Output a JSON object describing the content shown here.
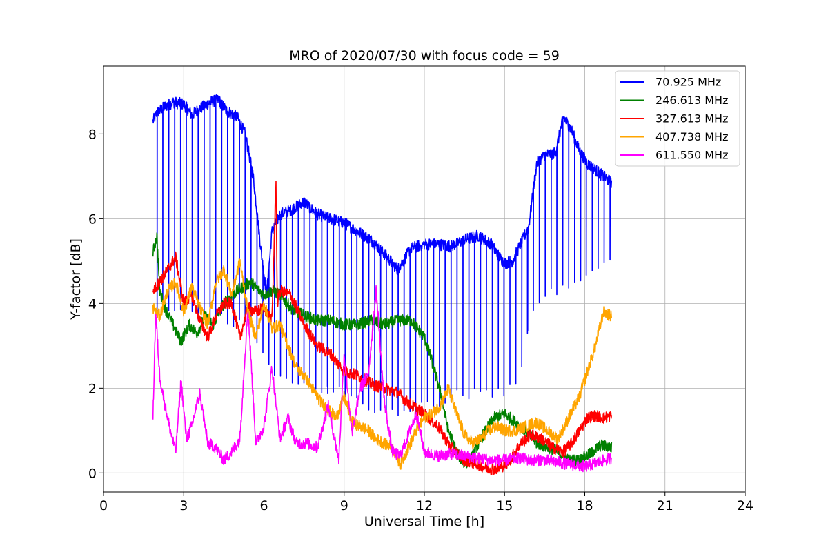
{
  "chart_data": {
    "type": "line",
    "title": "MRO of 2020/07/30 with focus code = 59",
    "xlabel": "Universal Time [h]",
    "ylabel": "Y-factor [dB]",
    "xlim": [
      0,
      24
    ],
    "ylim": [
      -0.45,
      9.6
    ],
    "xticks": [
      0,
      3,
      6,
      9,
      12,
      15,
      18,
      21,
      24
    ],
    "yticks": [
      0,
      2,
      4,
      6,
      8
    ],
    "grid": true,
    "legend_position": "top-right",
    "series": [
      {
        "name": " 70.925 MHz",
        "color": "#0000ff",
        "x": [
          1.85,
          2.0,
          2.3,
          2.6,
          3.0,
          3.3,
          3.6,
          4.0,
          4.3,
          4.6,
          5.0,
          5.3,
          5.6,
          5.9,
          6.1,
          6.3,
          6.6,
          7.0,
          7.5,
          8.0,
          8.5,
          9.0,
          9.5,
          10.0,
          10.3,
          10.6,
          11.0,
          11.5,
          12.0,
          12.5,
          13.0,
          13.5,
          14.0,
          14.5,
          14.8,
          15.0,
          15.3,
          15.6,
          15.9,
          16.2,
          16.5,
          16.9,
          17.2,
          17.5,
          17.8,
          18.1,
          18.4,
          18.7,
          19.0
        ],
        "y": [
          8.3,
          8.5,
          8.65,
          8.75,
          8.7,
          8.45,
          8.6,
          8.75,
          8.8,
          8.55,
          8.4,
          8.0,
          7.0,
          5.2,
          4.2,
          5.7,
          6.1,
          6.2,
          6.4,
          6.1,
          6.0,
          5.9,
          5.7,
          5.5,
          5.3,
          5.1,
          4.8,
          5.3,
          5.4,
          5.4,
          5.35,
          5.5,
          5.6,
          5.4,
          5.1,
          4.95,
          5.0,
          5.4,
          5.8,
          7.3,
          7.5,
          7.55,
          8.4,
          8.1,
          7.6,
          7.3,
          7.15,
          7.0,
          6.85
        ],
        "dips": {
          "step": 0.22,
          "from": 2.0,
          "to": 19.0,
          "levels": [
            [
              2.0,
              3.9
            ],
            [
              5.5,
              3.5
            ],
            [
              6.5,
              2.2
            ],
            [
              9.0,
              1.9
            ],
            [
              11.0,
              1.3
            ],
            [
              13.0,
              1.8
            ],
            [
              15.5,
              2.0
            ],
            [
              16.0,
              3.9
            ],
            [
              17.0,
              4.3
            ],
            [
              18.0,
              4.7
            ],
            [
              19.0,
              5.1
            ]
          ]
        }
      },
      {
        "name": "246.613 MHz",
        "color": "#008000",
        "x": [
          1.85,
          2.0,
          2.1,
          2.3,
          2.6,
          2.9,
          3.2,
          3.5,
          3.8,
          4.1,
          4.5,
          5.0,
          5.5,
          6.0,
          6.3,
          6.6,
          7.0,
          7.5,
          8.0,
          8.5,
          9.0,
          9.5,
          10.0,
          10.5,
          11.0,
          11.5,
          12.0,
          12.3,
          12.6,
          12.9,
          13.2,
          13.5,
          13.8,
          14.2,
          14.6,
          15.0,
          15.4,
          15.8,
          16.2,
          16.6,
          17.0,
          17.4,
          17.8,
          18.2,
          18.6,
          19.0
        ],
        "y": [
          5.2,
          5.6,
          4.3,
          3.9,
          3.5,
          3.1,
          3.5,
          3.3,
          3.7,
          3.5,
          4.0,
          4.3,
          4.5,
          4.2,
          4.3,
          4.2,
          3.9,
          3.7,
          3.6,
          3.6,
          3.5,
          3.5,
          3.6,
          3.5,
          3.6,
          3.6,
          3.2,
          2.6,
          1.9,
          1.0,
          0.5,
          0.2,
          0.4,
          0.9,
          1.3,
          1.4,
          1.2,
          1.0,
          0.7,
          0.6,
          0.5,
          0.3,
          0.3,
          0.45,
          0.65,
          0.6
        ]
      },
      {
        "name": "327.613 MHz",
        "color": "#ff0000",
        "x": [
          1.85,
          2.1,
          2.4,
          2.7,
          3.0,
          3.3,
          3.6,
          3.9,
          4.2,
          4.5,
          4.8,
          5.1,
          5.4,
          5.7,
          6.0,
          6.3,
          6.45,
          6.5,
          6.6,
          7.0,
          7.5,
          8.0,
          8.5,
          9.0,
          9.5,
          10.0,
          10.5,
          11.0,
          11.5,
          12.0,
          12.5,
          13.0,
          13.5,
          14.0,
          14.4,
          14.8,
          15.2,
          15.6,
          16.0,
          16.4,
          16.8,
          17.2,
          17.5,
          17.8,
          18.1,
          18.4,
          18.7,
          19.0
        ],
        "y": [
          4.3,
          4.5,
          4.8,
          5.1,
          4.0,
          4.2,
          3.6,
          3.2,
          3.7,
          4.0,
          4.0,
          3.2,
          3.9,
          3.8,
          3.9,
          3.6,
          6.9,
          4.0,
          4.3,
          4.2,
          3.5,
          3.0,
          2.8,
          2.4,
          2.3,
          2.1,
          2.0,
          1.9,
          1.6,
          1.4,
          1.1,
          0.6,
          0.3,
          0.2,
          0.1,
          0.1,
          0.3,
          0.7,
          0.9,
          0.8,
          0.6,
          0.5,
          0.7,
          1.0,
          1.3,
          1.35,
          1.3,
          1.35
        ]
      },
      {
        "name": "407.738 MHz",
        "color": "#ffa500",
        "x": [
          1.85,
          2.1,
          2.4,
          2.7,
          3.0,
          3.3,
          3.6,
          3.9,
          4.2,
          4.5,
          4.8,
          5.1,
          5.4,
          5.7,
          6.0,
          6.3,
          6.6,
          6.9,
          7.2,
          7.5,
          7.8,
          8.1,
          8.4,
          8.7,
          9.0,
          9.3,
          9.6,
          9.9,
          10.2,
          10.5,
          10.8,
          11.1,
          11.4,
          11.7,
          12.0,
          12.3,
          12.6,
          12.9,
          13.2,
          13.5,
          13.8,
          14.1,
          14.4,
          14.7,
          15.0,
          15.4,
          15.8,
          16.2,
          16.6,
          17.0,
          17.4,
          17.8,
          18.1,
          18.4,
          18.7,
          19.0
        ],
        "y": [
          3.9,
          3.7,
          4.3,
          4.5,
          3.8,
          4.4,
          3.9,
          3.5,
          4.5,
          4.8,
          4.2,
          5.0,
          3.8,
          3.2,
          4.0,
          3.4,
          3.5,
          3.0,
          2.5,
          2.3,
          2.0,
          1.7,
          1.5,
          1.3,
          1.8,
          1.2,
          1.1,
          1.0,
          0.8,
          0.7,
          0.6,
          0.2,
          0.6,
          1.0,
          1.3,
          1.4,
          1.6,
          2.0,
          1.4,
          0.9,
          0.7,
          0.8,
          1.0,
          1.1,
          1.0,
          1.0,
          1.1,
          1.2,
          1.0,
          0.8,
          1.3,
          1.8,
          2.4,
          3.0,
          3.8,
          3.7
        ]
      },
      {
        "name": "611.550 MHz",
        "color": "#ff00ff",
        "x": [
          1.85,
          1.95,
          2.1,
          2.3,
          2.5,
          2.7,
          2.9,
          3.1,
          3.3,
          3.6,
          3.9,
          4.2,
          4.5,
          4.8,
          5.1,
          5.4,
          5.7,
          6.0,
          6.3,
          6.6,
          6.9,
          7.2,
          7.6,
          8.0,
          8.4,
          8.8,
          9.0,
          9.3,
          9.6,
          9.9,
          10.2,
          10.5,
          10.8,
          11.1,
          11.4,
          11.7,
          12.0,
          12.5,
          13.0,
          13.5,
          14.0,
          14.5,
          15.0,
          15.5,
          16.0,
          16.5,
          17.0,
          17.5,
          18.0,
          18.5,
          19.0
        ],
        "y": [
          1.3,
          3.8,
          2.3,
          1.6,
          1.0,
          0.5,
          2.2,
          0.8,
          1.1,
          1.9,
          0.7,
          0.6,
          0.3,
          0.5,
          0.8,
          3.9,
          0.7,
          1.1,
          2.5,
          0.8,
          1.3,
          0.7,
          0.7,
          0.6,
          1.6,
          0.3,
          2.8,
          0.9,
          2.0,
          2.3,
          4.3,
          1.7,
          0.5,
          0.4,
          0.9,
          1.4,
          0.5,
          0.4,
          0.45,
          0.4,
          0.35,
          0.3,
          0.3,
          0.35,
          0.3,
          0.3,
          0.25,
          0.2,
          0.15,
          0.25,
          0.35
        ]
      }
    ]
  }
}
